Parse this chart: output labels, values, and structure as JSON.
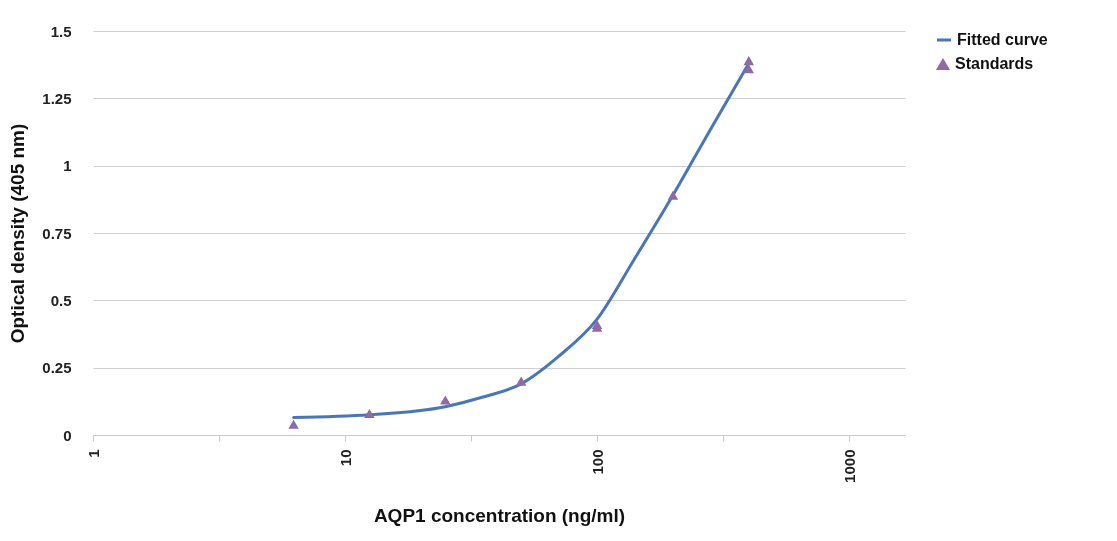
{
  "chart_data": {
    "type": "line",
    "xlabel": "AQP1 concentration (ng/ml)",
    "ylabel": "Optical density (405 nm)",
    "log": "x",
    "grid": "y",
    "legend": "right",
    "xlim": [
      1,
      1667
    ],
    "xticks": [
      1,
      {
        "value": 3.162,
        "label": null
      },
      10,
      {
        "value": 31.62,
        "label": null
      },
      100,
      {
        "value": 316.2,
        "label": null
      },
      1000
    ],
    "ylim": [
      0,
      1.5
    ],
    "yticks": [
      0,
      0.25,
      0.5,
      0.75,
      1,
      1.25,
      1.5
    ],
    "series": [
      {
        "name": "Fitted curve",
        "color": "#4a76b8",
        "line_style": "solid",
        "marker": "none",
        "x": [
          6.25,
          12.5,
          25,
          35,
          50,
          70,
          100,
          140,
          200,
          280,
          400
        ],
        "values": [
          0.065,
          0.075,
          0.105,
          0.14,
          0.19,
          0.29,
          0.43,
          0.65,
          0.89,
          1.13,
          1.38
        ]
      },
      {
        "name": "Standards",
        "type": "scatter",
        "color": "#8d6aa8",
        "marker": "triangle",
        "x": [
          6.25,
          12.5,
          25,
          50,
          100,
          100,
          200,
          400,
          400
        ],
        "values": [
          0.04,
          0.08,
          0.13,
          0.2,
          0.41,
          0.4,
          0.89,
          1.39,
          1.36
        ]
      }
    ]
  }
}
